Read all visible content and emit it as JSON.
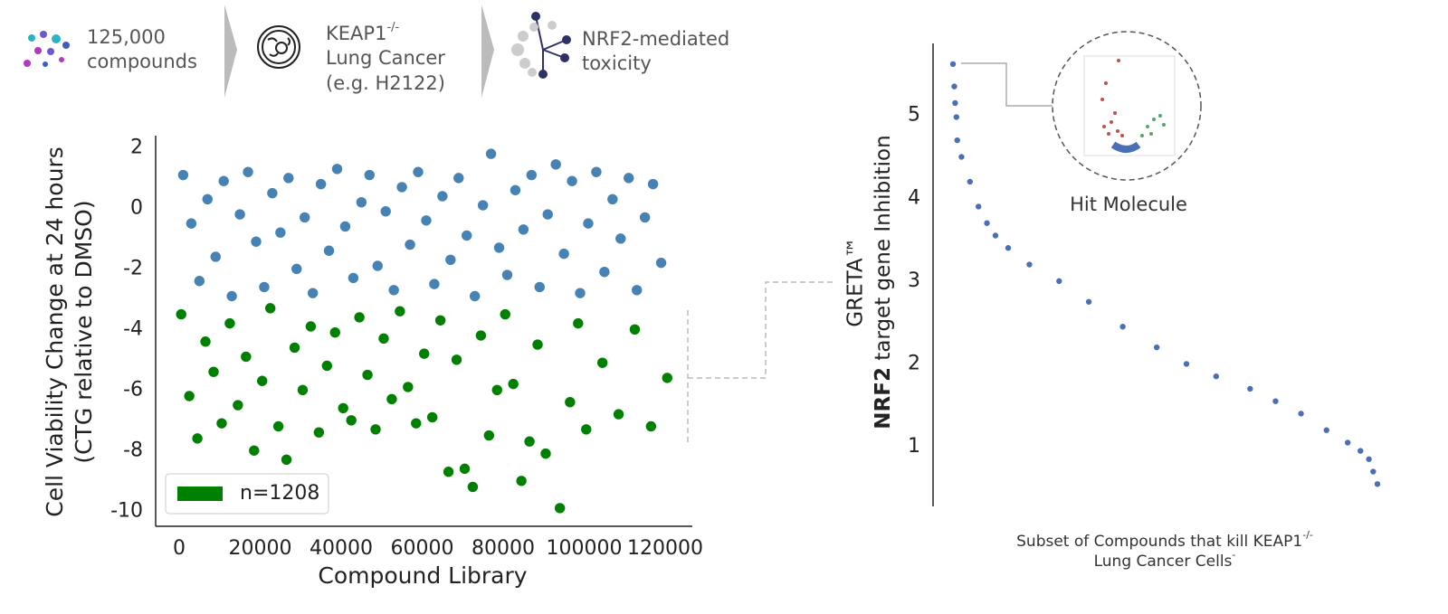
{
  "header": {
    "steps": [
      {
        "lines": [
          "125,000",
          "compounds"
        ]
      },
      {
        "label": "KEAP1",
        "sup": "-/-",
        "lines": [
          "Lung Cancer",
          "(e.g. H2122)"
        ]
      },
      {
        "lines": [
          "NRF2-mediated",
          "toxicity"
        ]
      }
    ]
  },
  "chart_data": [
    {
      "type": "scatter",
      "xlabel": "Compound Library",
      "ylabel": [
        "Cell Viability Change at 24 hours",
        "(CTG relative to DMSO)"
      ],
      "xlim": [
        -5800,
        126700
      ],
      "ylim": [
        -10.5,
        2.4
      ],
      "xticks": [
        0,
        20000,
        40000,
        60000,
        80000,
        100000,
        120000
      ],
      "yticks": [
        -10,
        -8,
        -6,
        -4,
        -2,
        0,
        2
      ],
      "legend": "lower left",
      "legend_series": 1,
      "series": [
        {
          "color": "#4682b4",
          "x": [
            1000,
            3000,
            5000,
            7000,
            9000,
            11000,
            13000,
            15000,
            17000,
            19000,
            21000,
            23000,
            25000,
            27000,
            29000,
            31000,
            33000,
            35000,
            37000,
            39000,
            41000,
            43000,
            45000,
            47000,
            49000,
            51000,
            53000,
            55000,
            57000,
            59000,
            61000,
            63000,
            65000,
            67000,
            69000,
            71000,
            73000,
            75000,
            77000,
            79000,
            81000,
            83000,
            85000,
            87000,
            89000,
            91000,
            93000,
            95000,
            97000,
            99000,
            101000,
            103000,
            105000,
            107000,
            109000,
            111000,
            113000,
            115000,
            117000,
            119000
          ],
          "values": [
            1.1,
            -0.5,
            -2.4,
            0.3,
            -1.6,
            0.9,
            -2.9,
            -0.2,
            1.2,
            -1.1,
            -2.6,
            0.5,
            -0.8,
            1.0,
            -2.0,
            -0.3,
            -2.8,
            0.8,
            -1.4,
            1.3,
            -0.6,
            -2.3,
            0.2,
            1.1,
            -1.9,
            -0.1,
            -2.7,
            0.7,
            -1.2,
            1.2,
            -0.4,
            -2.5,
            0.4,
            -1.7,
            1.0,
            -0.9,
            -2.9,
            0.1,
            1.8,
            -1.3,
            -2.2,
            0.6,
            -0.7,
            1.1,
            -2.6,
            -0.2,
            1.45,
            -1.5,
            0.9,
            -2.8,
            -0.5,
            1.2,
            -2.1,
            0.3,
            -1.0,
            1.0,
            -2.7,
            -0.3,
            0.8,
            -1.8
          ]
        },
        {
          "name": "n=1208",
          "color": "#008000",
          "x": [
            500,
            2500,
            4500,
            6500,
            8500,
            10500,
            12500,
            14500,
            16500,
            18500,
            20500,
            22500,
            24500,
            26500,
            28500,
            30500,
            32500,
            34500,
            36500,
            38500,
            40500,
            42500,
            44500,
            46500,
            48500,
            50500,
            52500,
            54500,
            56500,
            58500,
            60500,
            62500,
            64500,
            66500,
            68500,
            70500,
            72500,
            74500,
            76500,
            78500,
            80500,
            82500,
            84500,
            86500,
            88500,
            90500,
            94000,
            96500,
            98500,
            100500,
            104500,
            108500,
            112500,
            116500,
            120500
          ],
          "values": [
            -3.5,
            -6.2,
            -7.6,
            -4.4,
            -5.4,
            -7.1,
            -3.8,
            -6.5,
            -4.9,
            -8.0,
            -5.7,
            -3.3,
            -7.2,
            -8.3,
            -4.6,
            -6.0,
            -3.9,
            -7.4,
            -5.2,
            -4.1,
            -6.6,
            -7.0,
            -3.6,
            -5.5,
            -7.3,
            -4.3,
            -6.3,
            -3.4,
            -5.9,
            -7.1,
            -4.8,
            -6.9,
            -3.7,
            -8.7,
            -5.0,
            -8.6,
            -9.2,
            -4.2,
            -7.5,
            -6.0,
            -3.5,
            -5.8,
            -9.0,
            -7.7,
            -4.5,
            -8.1,
            -9.9,
            -6.4,
            -3.8,
            -7.3,
            -5.1,
            -6.8,
            -4.0,
            -7.2,
            -5.6
          ]
        }
      ]
    },
    {
      "type": "scatter",
      "xlabel": {
        "line1": "Subset of Compounds that kill KEAP1",
        "sup1": "-/-",
        "line2": "Lung Cancer Cells",
        "sup2": "-"
      },
      "ylabel": {
        "line1": "GRETA™",
        "bold": "NRF2",
        "rest": " target gene Inhibition"
      },
      "inset_label": "Hit Molecule",
      "xlim": [
        -4.7,
        100
      ],
      "ylim": [
        0.28,
        5.87
      ],
      "yticks": [
        1,
        2,
        3,
        4,
        5
      ],
      "series": [
        {
          "color": "#4a6fb5",
          "x": [
            0,
            0.3,
            0.5,
            0.8,
            1,
            2,
            4,
            6,
            8,
            10,
            13,
            18,
            25,
            32,
            40,
            48,
            55,
            62,
            70,
            76,
            82,
            88,
            93,
            96,
            98,
            99,
            100
          ],
          "values": [
            5.62,
            5.35,
            5.15,
            4.98,
            4.7,
            4.5,
            4.2,
            3.9,
            3.7,
            3.55,
            3.4,
            3.2,
            3.0,
            2.75,
            2.45,
            2.2,
            2.0,
            1.85,
            1.7,
            1.55,
            1.4,
            1.2,
            1.05,
            0.95,
            0.85,
            0.7,
            0.55
          ]
        }
      ]
    }
  ]
}
